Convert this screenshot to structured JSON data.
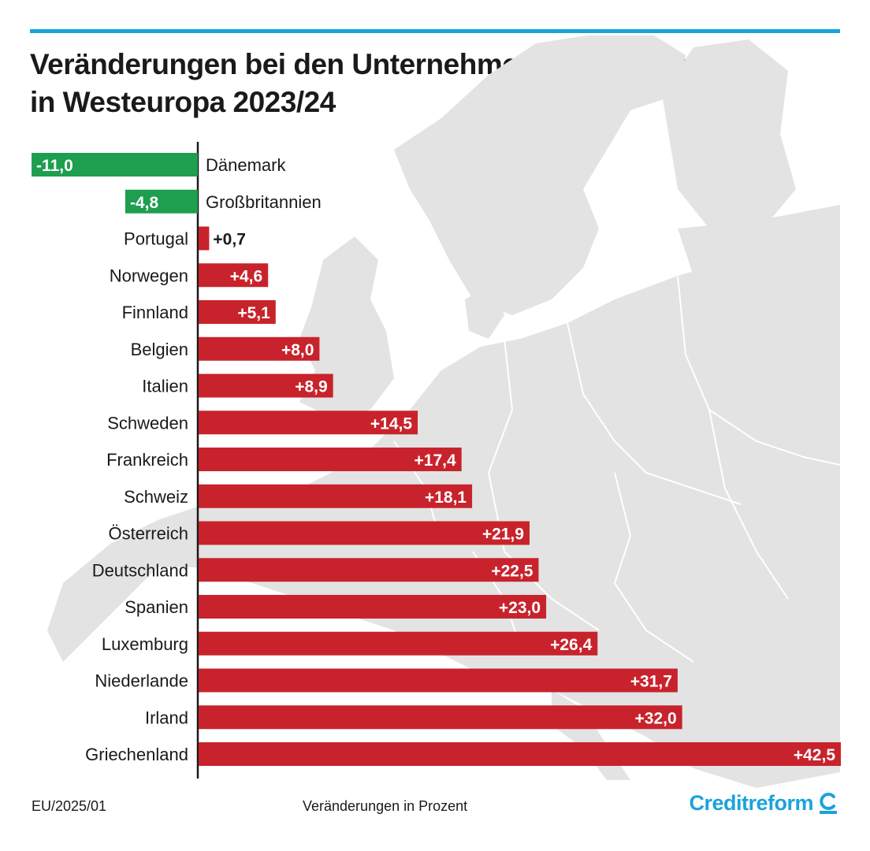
{
  "header": {
    "title_line1": "Veränderungen bei den Unternehmensinsolvenzen",
    "title_line2": "in Westeuropa 2023/24"
  },
  "footer": {
    "code": "EU/2025/01",
    "caption": "Veränderungen in Prozent",
    "brand": "Creditreform"
  },
  "colors": {
    "accent": "#1aa3dd",
    "positive": "#c8232c",
    "negative": "#1e9e4f",
    "map": "#e3e3e3"
  },
  "chart_data": {
    "type": "bar",
    "orientation": "horizontal",
    "title": "Veränderungen bei den Unternehmensinsolvenzen in Westeuropa 2023/24",
    "xlabel": "Veränderungen in Prozent",
    "ylabel": "",
    "xlim": [
      -11,
      42.5
    ],
    "categories": [
      "Dänemark",
      "Großbritannien",
      "Portugal",
      "Norwegen",
      "Finnland",
      "Belgien",
      "Italien",
      "Schweden",
      "Frankreich",
      "Schweiz",
      "Österreich",
      "Deutschland",
      "Spanien",
      "Luxemburg",
      "Niederlande",
      "Irland",
      "Griechenland"
    ],
    "values": [
      -11.0,
      -4.8,
      0.7,
      4.6,
      5.1,
      8.0,
      8.9,
      14.5,
      17.4,
      18.1,
      21.9,
      22.5,
      23.0,
      26.4,
      31.7,
      32.0,
      42.5
    ],
    "value_labels": [
      "-11,0",
      "-4,8",
      "+0,7",
      "+4,6",
      "+5,1",
      "+8,0",
      "+8,9",
      "+14,5",
      "+17,4",
      "+18,1",
      "+21,9",
      "+22,5",
      "+23,0",
      "+26,4",
      "+31,7",
      "+32,0",
      "+42,5"
    ]
  }
}
